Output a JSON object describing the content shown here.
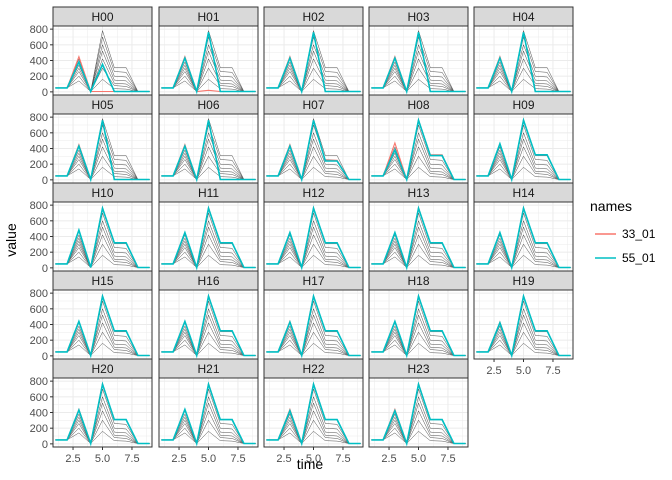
{
  "chart_data": {
    "type": "line",
    "layout": "facet_wrap",
    "xlabel": "time",
    "ylabel": "value",
    "xlim": [
      0.8,
      9.2
    ],
    "ylim": [
      -40,
      840
    ],
    "x_ticks": [
      "2.5",
      "5.0",
      "7.5"
    ],
    "x_tick_values": [
      2.5,
      5.0,
      7.5
    ],
    "y_ticks": [
      "0",
      "200",
      "400",
      "600",
      "800"
    ],
    "y_tick_values": [
      0,
      200,
      400,
      600,
      800
    ],
    "x": [
      1,
      2,
      3,
      4,
      5,
      6,
      7,
      8,
      9
    ],
    "legend": {
      "title": "names",
      "placement": "right",
      "entries": [
        {
          "label": "33_01",
          "color": "#F8766D"
        },
        {
          "label": "55_01",
          "color": "#00BFC4"
        }
      ]
    },
    "background_series_color": "#4d4d4d",
    "background_series": [
      [
        50,
        50,
        420,
        5,
        780,
        310,
        310,
        5,
        5
      ],
      [
        50,
        50,
        380,
        5,
        700,
        260,
        250,
        5,
        5
      ],
      [
        50,
        50,
        340,
        5,
        600,
        200,
        190,
        5,
        5
      ],
      [
        50,
        50,
        300,
        5,
        520,
        150,
        140,
        5,
        5
      ],
      [
        50,
        50,
        260,
        5,
        420,
        110,
        100,
        5,
        5
      ],
      [
        50,
        50,
        200,
        5,
        300,
        80,
        70,
        5,
        5
      ],
      [
        50,
        50,
        140,
        5,
        160,
        40,
        35,
        5,
        5
      ]
    ],
    "panels": [
      {
        "label": "H00",
        "s33": [
          50,
          50,
          450,
          5,
          5,
          5,
          5,
          5,
          5
        ],
        "s55": [
          50,
          50,
          380,
          5,
          350,
          5,
          5,
          5,
          5
        ]
      },
      {
        "label": "H01",
        "s33": [
          50,
          50,
          450,
          5,
          20,
          5,
          5,
          5,
          5
        ],
        "s55": [
          50,
          50,
          430,
          5,
          760,
          5,
          5,
          5,
          5
        ]
      },
      {
        "label": "H02",
        "s33": [
          50,
          50,
          450,
          5,
          760,
          5,
          5,
          5,
          5
        ],
        "s55": [
          50,
          50,
          430,
          5,
          760,
          5,
          5,
          5,
          5
        ]
      },
      {
        "label": "H03",
        "s33": [
          50,
          50,
          450,
          5,
          760,
          5,
          5,
          5,
          5
        ],
        "s55": [
          50,
          50,
          430,
          5,
          760,
          5,
          5,
          5,
          5
        ]
      },
      {
        "label": "H04",
        "s33": [
          50,
          50,
          450,
          5,
          760,
          5,
          5,
          5,
          5
        ],
        "s55": [
          50,
          50,
          430,
          5,
          760,
          5,
          5,
          5,
          5
        ]
      },
      {
        "label": "H05",
        "s33": [
          50,
          50,
          450,
          5,
          760,
          5,
          5,
          5,
          5
        ],
        "s55": [
          50,
          50,
          430,
          5,
          760,
          5,
          5,
          5,
          5
        ]
      },
      {
        "label": "H06",
        "s33": [
          50,
          50,
          450,
          5,
          760,
          5,
          5,
          5,
          5
        ],
        "s55": [
          50,
          50,
          430,
          5,
          760,
          5,
          5,
          5,
          5
        ]
      },
      {
        "label": "H07",
        "s33": [
          50,
          50,
          450,
          5,
          760,
          250,
          250,
          5,
          5
        ],
        "s55": [
          50,
          50,
          430,
          5,
          760,
          240,
          240,
          5,
          5
        ]
      },
      {
        "label": "H08",
        "s33": [
          50,
          50,
          470,
          5,
          760,
          320,
          320,
          5,
          5
        ],
        "s55": [
          50,
          50,
          380,
          5,
          760,
          310,
          310,
          5,
          5
        ]
      },
      {
        "label": "H09",
        "s33": [
          50,
          50,
          460,
          5,
          760,
          320,
          320,
          5,
          5
        ],
        "s55": [
          50,
          50,
          460,
          5,
          760,
          320,
          320,
          5,
          5
        ]
      },
      {
        "label": "H10",
        "s33": [
          50,
          50,
          480,
          5,
          760,
          320,
          320,
          5,
          5
        ],
        "s55": [
          50,
          50,
          480,
          5,
          760,
          320,
          320,
          5,
          5
        ]
      },
      {
        "label": "H11",
        "s33": [
          50,
          50,
          450,
          5,
          760,
          320,
          320,
          5,
          5
        ],
        "s55": [
          50,
          50,
          450,
          5,
          760,
          320,
          320,
          5,
          5
        ]
      },
      {
        "label": "H12",
        "s33": [
          50,
          50,
          450,
          5,
          760,
          320,
          320,
          5,
          5
        ],
        "s55": [
          50,
          50,
          450,
          5,
          760,
          320,
          320,
          5,
          5
        ]
      },
      {
        "label": "H13",
        "s33": [
          50,
          50,
          450,
          5,
          760,
          320,
          320,
          5,
          5
        ],
        "s55": [
          50,
          50,
          450,
          5,
          760,
          320,
          320,
          5,
          5
        ]
      },
      {
        "label": "H14",
        "s33": [
          50,
          50,
          450,
          5,
          760,
          320,
          320,
          5,
          5
        ],
        "s55": [
          50,
          50,
          450,
          5,
          760,
          320,
          320,
          5,
          5
        ]
      },
      {
        "label": "H15",
        "s33": [
          50,
          50,
          440,
          5,
          760,
          320,
          320,
          5,
          5
        ],
        "s55": [
          50,
          50,
          440,
          5,
          760,
          320,
          320,
          5,
          5
        ]
      },
      {
        "label": "H16",
        "s33": [
          50,
          50,
          440,
          5,
          760,
          320,
          320,
          5,
          5
        ],
        "s55": [
          50,
          50,
          440,
          5,
          760,
          320,
          320,
          5,
          5
        ]
      },
      {
        "label": "H17",
        "s33": [
          50,
          50,
          440,
          5,
          760,
          320,
          320,
          5,
          5
        ],
        "s55": [
          50,
          50,
          430,
          5,
          760,
          320,
          320,
          5,
          5
        ]
      },
      {
        "label": "H18",
        "s33": [
          50,
          50,
          440,
          5,
          760,
          320,
          320,
          5,
          5
        ],
        "s55": [
          50,
          50,
          440,
          5,
          760,
          320,
          320,
          5,
          5
        ]
      },
      {
        "label": "H19",
        "s33": [
          50,
          50,
          430,
          5,
          760,
          320,
          320,
          5,
          5
        ],
        "s55": [
          50,
          50,
          420,
          5,
          760,
          320,
          320,
          5,
          5
        ]
      },
      {
        "label": "H20",
        "s33": [
          50,
          50,
          440,
          5,
          760,
          310,
          310,
          5,
          5
        ],
        "s55": [
          50,
          50,
          430,
          5,
          760,
          310,
          310,
          5,
          5
        ]
      },
      {
        "label": "H21",
        "s33": [
          50,
          50,
          440,
          5,
          760,
          310,
          310,
          5,
          5
        ],
        "s55": [
          50,
          50,
          440,
          5,
          760,
          310,
          310,
          5,
          5
        ]
      },
      {
        "label": "H22",
        "s33": [
          50,
          50,
          440,
          5,
          760,
          310,
          310,
          5,
          5
        ],
        "s55": [
          50,
          50,
          420,
          5,
          760,
          310,
          310,
          5,
          5
        ]
      },
      {
        "label": "H23",
        "s33": [
          50,
          50,
          440,
          5,
          760,
          310,
          310,
          5,
          5
        ],
        "s55": [
          50,
          50,
          420,
          5,
          760,
          310,
          310,
          5,
          5
        ]
      }
    ]
  }
}
